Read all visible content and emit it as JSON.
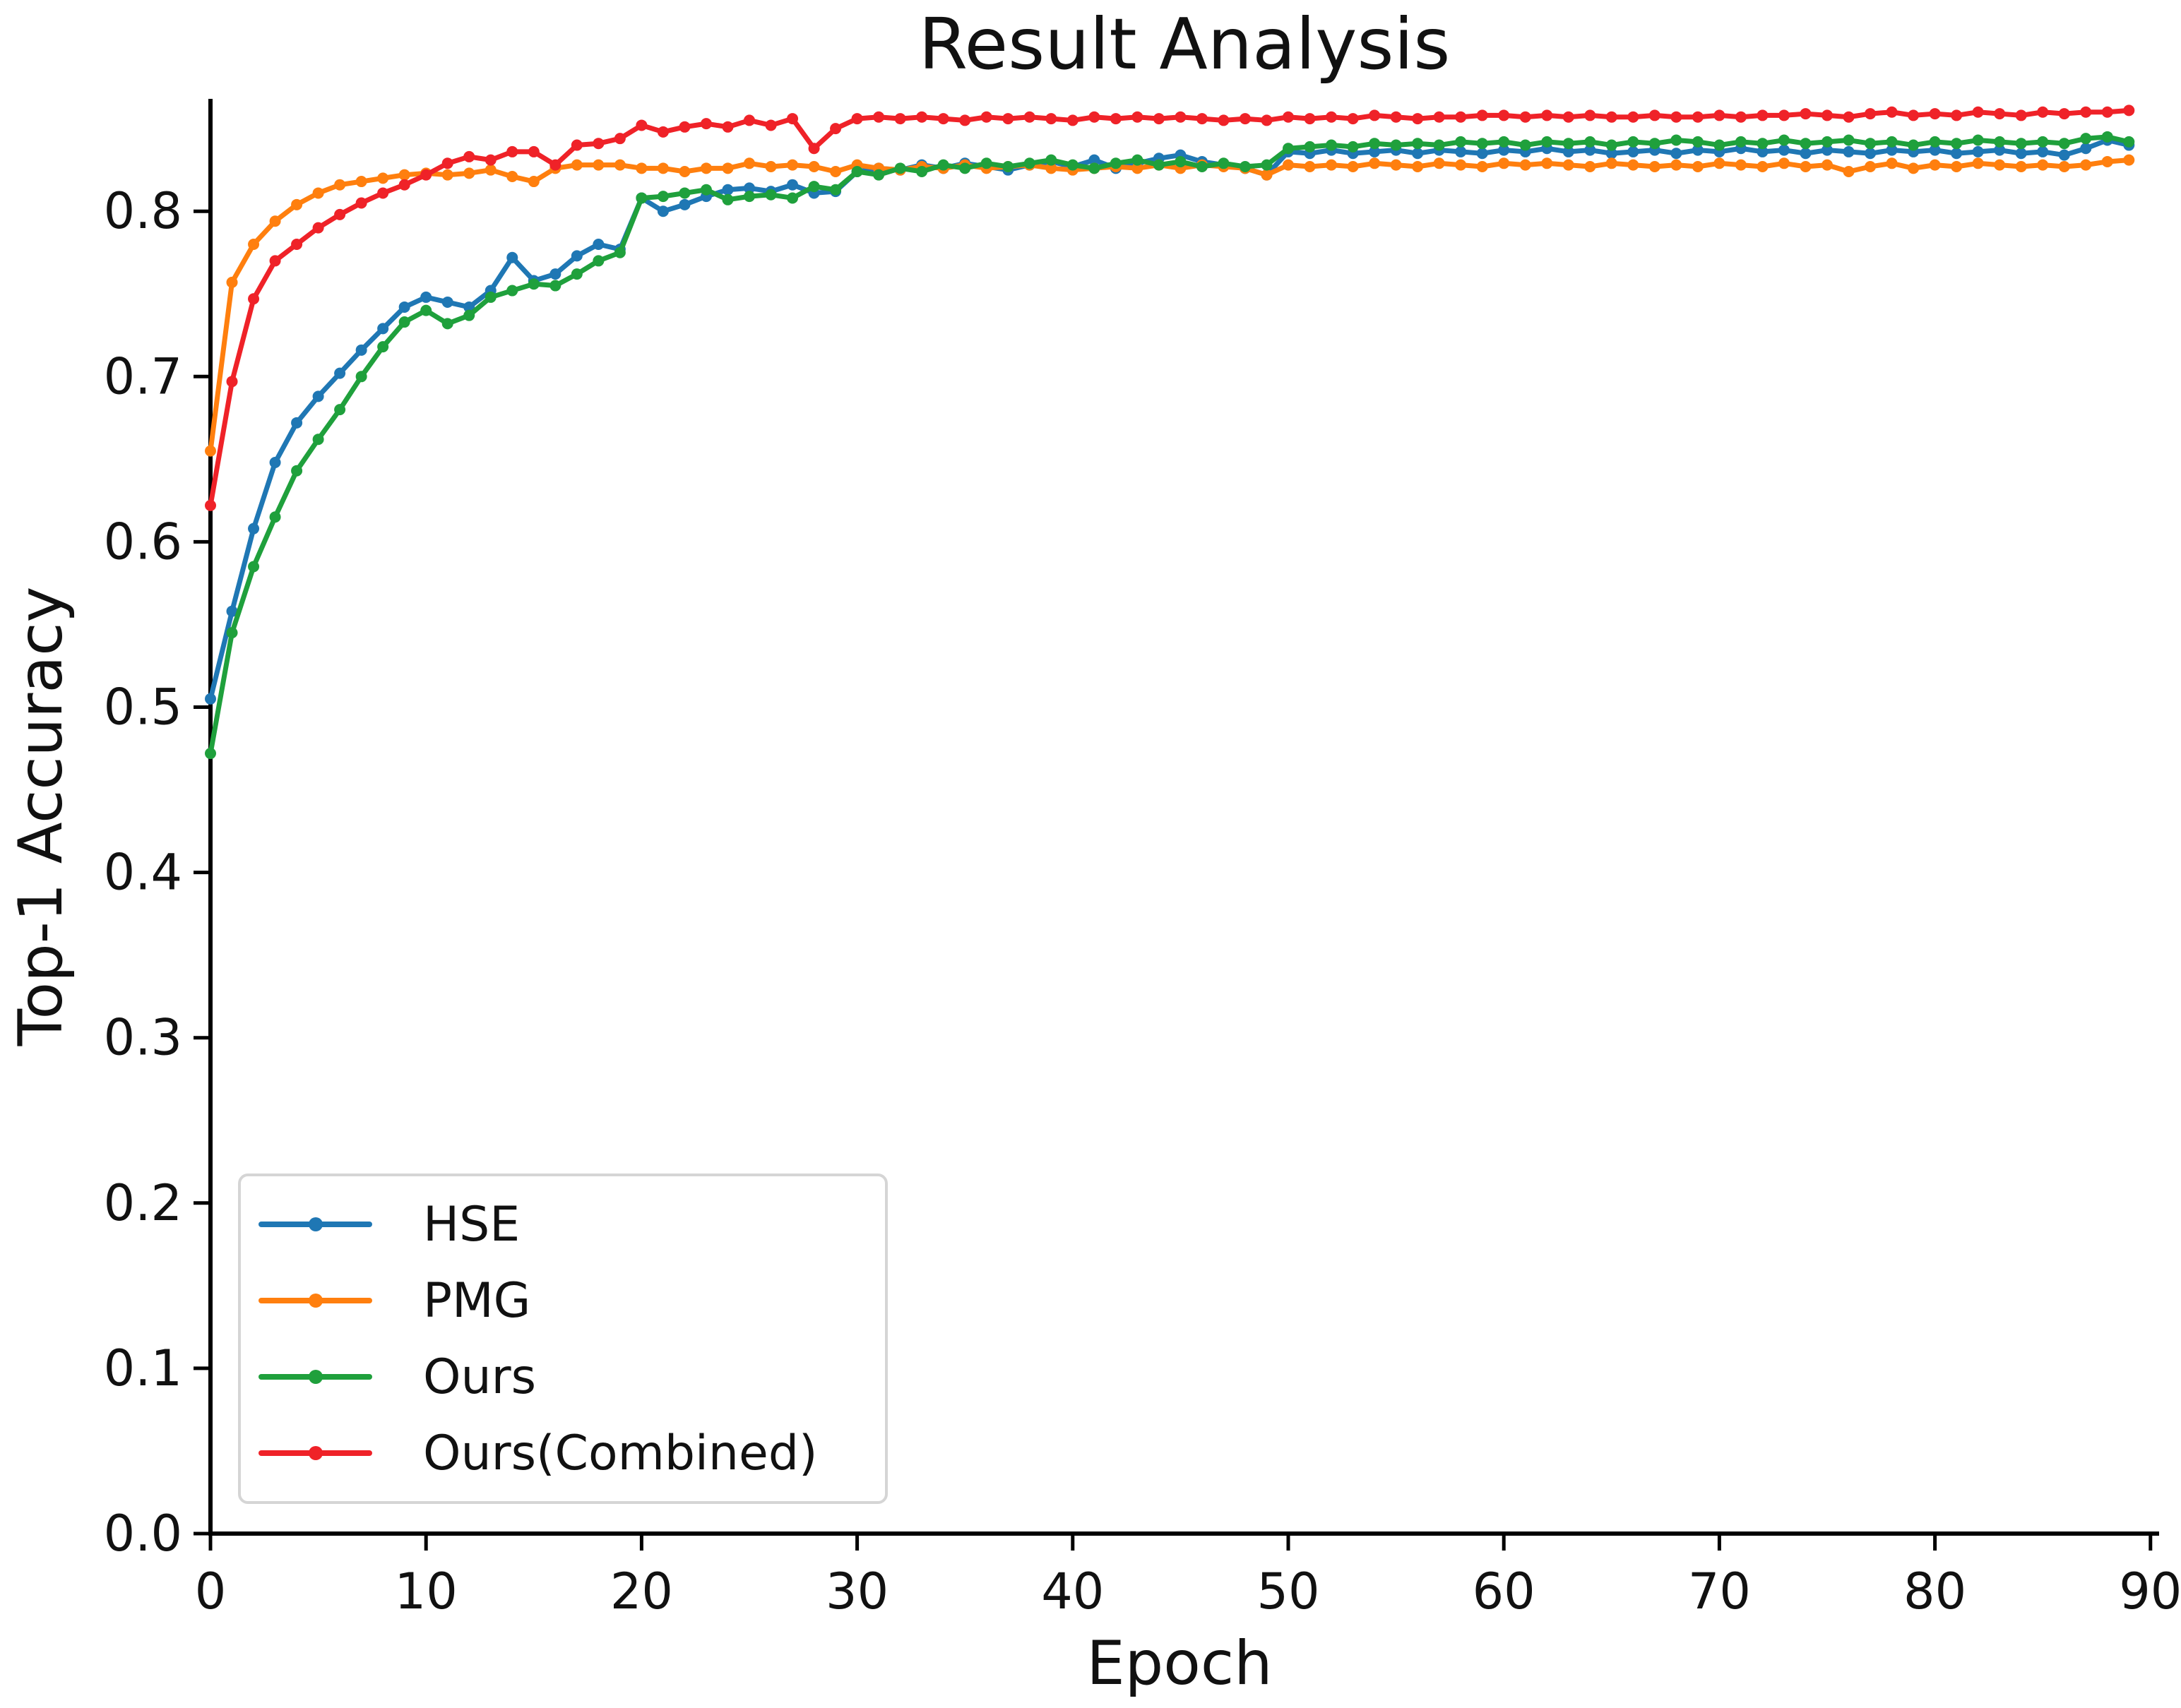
{
  "chart_data": {
    "type": "line",
    "title": "Result Analysis",
    "xlabel": "Epoch",
    "ylabel": "Top-1 Accuracy",
    "xlim": [
      0,
      90.4
    ],
    "ylim": [
      0,
      0.868
    ],
    "xticks": [
      "0",
      "10",
      "20",
      "30",
      "40",
      "50",
      "60",
      "70",
      "80",
      "90"
    ],
    "yticks": [
      "0.0",
      "0.1",
      "0.2",
      "0.3",
      "0.4",
      "0.5",
      "0.6",
      "0.7",
      "0.8"
    ],
    "grid": false,
    "legend_position": "lower left",
    "marker": "dot",
    "x_note": "x value equals array index = epoch 0..89",
    "series": [
      {
        "name": "HSE",
        "color": "#1f77b4",
        "values": [
          0.505,
          0.558,
          0.608,
          0.648,
          0.672,
          0.688,
          0.702,
          0.716,
          0.729,
          0.742,
          0.748,
          0.745,
          0.742,
          0.752,
          0.772,
          0.758,
          0.762,
          0.773,
          0.78,
          0.777,
          0.808,
          0.8,
          0.804,
          0.809,
          0.813,
          0.814,
          0.812,
          0.816,
          0.811,
          0.812,
          0.824,
          0.826,
          0.825,
          0.828,
          0.826,
          0.829,
          0.827,
          0.825,
          0.828,
          0.83,
          0.827,
          0.831,
          0.826,
          0.829,
          0.832,
          0.834,
          0.83,
          0.828,
          0.826,
          0.822,
          0.836,
          0.835,
          0.837,
          0.835,
          0.836,
          0.837,
          0.835,
          0.837,
          0.836,
          0.835,
          0.837,
          0.836,
          0.838,
          0.836,
          0.837,
          0.835,
          0.836,
          0.837,
          0.835,
          0.837,
          0.836,
          0.838,
          0.836,
          0.837,
          0.835,
          0.837,
          0.836,
          0.835,
          0.837,
          0.836,
          0.837,
          0.835,
          0.836,
          0.837,
          0.835,
          0.836,
          0.834,
          0.838,
          0.843,
          0.84
        ]
      },
      {
        "name": "PMG",
        "color": "#ff7f0e",
        "values": [
          0.655,
          0.757,
          0.78,
          0.794,
          0.804,
          0.811,
          0.816,
          0.818,
          0.82,
          0.822,
          0.823,
          0.822,
          0.823,
          0.825,
          0.821,
          0.818,
          0.826,
          0.828,
          0.828,
          0.828,
          0.826,
          0.826,
          0.824,
          0.826,
          0.826,
          0.829,
          0.827,
          0.828,
          0.827,
          0.824,
          0.828,
          0.826,
          0.825,
          0.827,
          0.826,
          0.828,
          0.826,
          0.827,
          0.828,
          0.826,
          0.825,
          0.826,
          0.827,
          0.826,
          0.828,
          0.826,
          0.828,
          0.827,
          0.826,
          0.822,
          0.828,
          0.827,
          0.828,
          0.827,
          0.829,
          0.828,
          0.827,
          0.829,
          0.828,
          0.827,
          0.829,
          0.828,
          0.829,
          0.828,
          0.827,
          0.829,
          0.828,
          0.827,
          0.828,
          0.827,
          0.829,
          0.828,
          0.827,
          0.829,
          0.827,
          0.828,
          0.824,
          0.827,
          0.829,
          0.826,
          0.828,
          0.827,
          0.829,
          0.828,
          0.827,
          0.828,
          0.827,
          0.828,
          0.83,
          0.831
        ]
      },
      {
        "name": "Ours",
        "color": "#1fa03c",
        "values": [
          0.472,
          0.545,
          0.585,
          0.615,
          0.643,
          0.662,
          0.68,
          0.7,
          0.718,
          0.733,
          0.74,
          0.732,
          0.737,
          0.748,
          0.752,
          0.756,
          0.755,
          0.762,
          0.77,
          0.775,
          0.808,
          0.809,
          0.811,
          0.813,
          0.807,
          0.809,
          0.81,
          0.808,
          0.815,
          0.813,
          0.824,
          0.822,
          0.826,
          0.824,
          0.828,
          0.826,
          0.829,
          0.827,
          0.829,
          0.831,
          0.828,
          0.826,
          0.829,
          0.831,
          0.828,
          0.83,
          0.827,
          0.829,
          0.827,
          0.828,
          0.838,
          0.839,
          0.84,
          0.839,
          0.841,
          0.84,
          0.841,
          0.84,
          0.842,
          0.841,
          0.842,
          0.84,
          0.842,
          0.841,
          0.842,
          0.84,
          0.842,
          0.841,
          0.843,
          0.842,
          0.84,
          0.842,
          0.841,
          0.843,
          0.841,
          0.842,
          0.843,
          0.841,
          0.842,
          0.84,
          0.842,
          0.841,
          0.843,
          0.842,
          0.841,
          0.842,
          0.841,
          0.844,
          0.845,
          0.842
        ]
      },
      {
        "name": "Ours(Combined)",
        "color": "#ef2228",
        "values": [
          0.622,
          0.697,
          0.747,
          0.77,
          0.78,
          0.79,
          0.798,
          0.805,
          0.811,
          0.816,
          0.822,
          0.829,
          0.833,
          0.831,
          0.836,
          0.836,
          0.828,
          0.84,
          0.841,
          0.844,
          0.852,
          0.848,
          0.851,
          0.853,
          0.851,
          0.855,
          0.852,
          0.856,
          0.838,
          0.85,
          0.856,
          0.857,
          0.856,
          0.857,
          0.856,
          0.855,
          0.857,
          0.856,
          0.857,
          0.856,
          0.855,
          0.857,
          0.856,
          0.857,
          0.856,
          0.857,
          0.856,
          0.855,
          0.856,
          0.855,
          0.857,
          0.856,
          0.857,
          0.856,
          0.858,
          0.857,
          0.856,
          0.857,
          0.857,
          0.858,
          0.858,
          0.857,
          0.858,
          0.857,
          0.858,
          0.857,
          0.857,
          0.858,
          0.857,
          0.857,
          0.858,
          0.857,
          0.858,
          0.858,
          0.859,
          0.858,
          0.857,
          0.859,
          0.86,
          0.858,
          0.859,
          0.858,
          0.86,
          0.859,
          0.858,
          0.86,
          0.859,
          0.86,
          0.86,
          0.861
        ]
      }
    ]
  },
  "colors": {
    "background": "#ffffff",
    "axis": "#000000",
    "tick_label": "#111111",
    "legend_border": "#d5d5d5"
  }
}
